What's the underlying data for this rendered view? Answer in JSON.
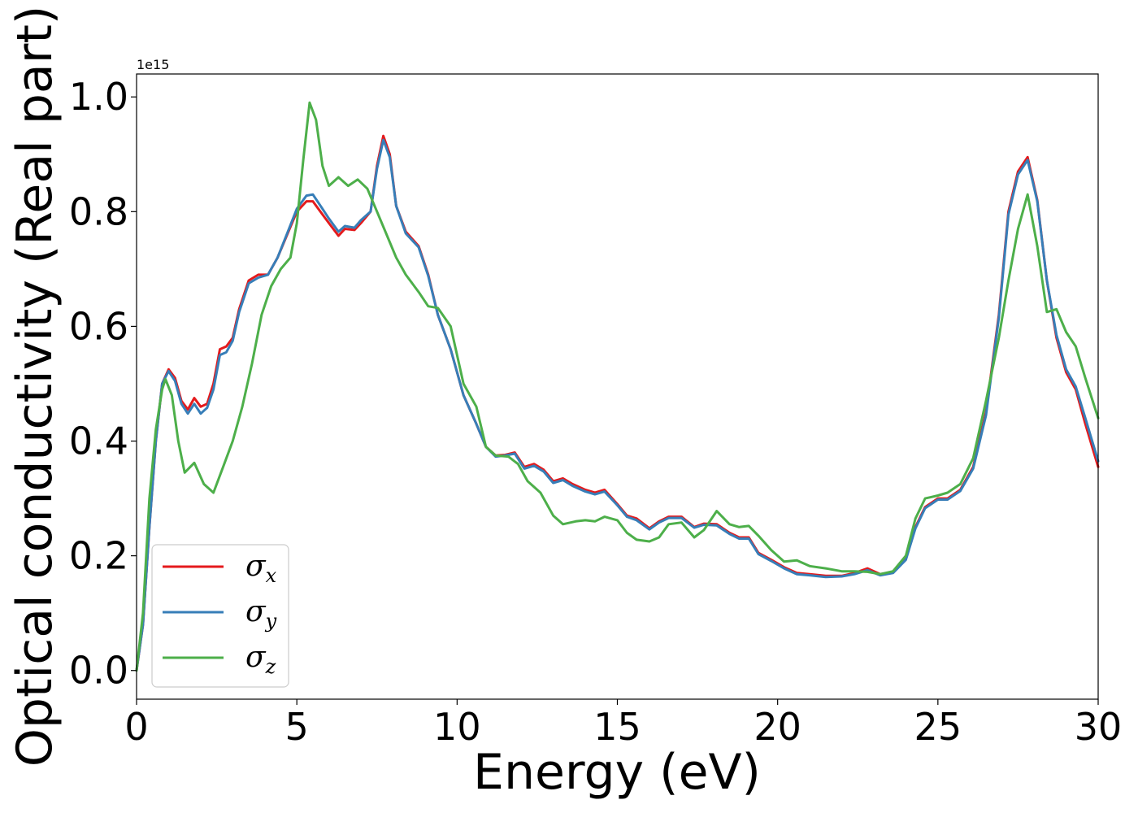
{
  "chart_data": {
    "type": "line",
    "xlabel": "Energy (eV)",
    "ylabel": "Optical conductivity (Real part)",
    "offset_text": "1e15",
    "xlim": [
      0,
      30
    ],
    "ylim": [
      -0.05,
      1.04
    ],
    "x_ticks": [
      0,
      5,
      10,
      15,
      20,
      25,
      30
    ],
    "x_tick_labels": [
      "0",
      "5",
      "10",
      "15",
      "20",
      "25",
      "30"
    ],
    "y_ticks": [
      0.0,
      0.2,
      0.4,
      0.6,
      0.8,
      1.0
    ],
    "y_tick_labels": [
      "0.0",
      "0.2",
      "0.4",
      "0.6",
      "0.8",
      "1.0"
    ],
    "grid": false,
    "legend_position": "lower-left",
    "series": [
      {
        "name": "σx",
        "symbol": "σ",
        "subscript": "x",
        "color": "#e41a1c",
        "points": [
          [
            0,
            0
          ],
          [
            0.2,
            0.08
          ],
          [
            0.4,
            0.25
          ],
          [
            0.6,
            0.4
          ],
          [
            0.8,
            0.5
          ],
          [
            1.0,
            0.525
          ],
          [
            1.2,
            0.51
          ],
          [
            1.4,
            0.47
          ],
          [
            1.6,
            0.455
          ],
          [
            1.8,
            0.475
          ],
          [
            2.0,
            0.46
          ],
          [
            2.2,
            0.465
          ],
          [
            2.4,
            0.5
          ],
          [
            2.6,
            0.56
          ],
          [
            2.8,
            0.565
          ],
          [
            3.0,
            0.58
          ],
          [
            3.2,
            0.63
          ],
          [
            3.5,
            0.68
          ],
          [
            3.8,
            0.69
          ],
          [
            4.1,
            0.69
          ],
          [
            4.4,
            0.72
          ],
          [
            4.7,
            0.76
          ],
          [
            5.0,
            0.8
          ],
          [
            5.3,
            0.818
          ],
          [
            5.5,
            0.818
          ],
          [
            5.8,
            0.795
          ],
          [
            6.0,
            0.78
          ],
          [
            6.3,
            0.758
          ],
          [
            6.5,
            0.77
          ],
          [
            6.8,
            0.768
          ],
          [
            7.0,
            0.78
          ],
          [
            7.3,
            0.8
          ],
          [
            7.5,
            0.88
          ],
          [
            7.7,
            0.932
          ],
          [
            7.9,
            0.9
          ],
          [
            8.1,
            0.81
          ],
          [
            8.4,
            0.765
          ],
          [
            8.8,
            0.74
          ],
          [
            9.1,
            0.69
          ],
          [
            9.4,
            0.62
          ],
          [
            9.8,
            0.56
          ],
          [
            10.2,
            0.48
          ],
          [
            10.6,
            0.43
          ],
          [
            10.9,
            0.39
          ],
          [
            11.2,
            0.375
          ],
          [
            11.5,
            0.376
          ],
          [
            11.8,
            0.38
          ],
          [
            12.1,
            0.355
          ],
          [
            12.4,
            0.36
          ],
          [
            12.7,
            0.35
          ],
          [
            13.0,
            0.33
          ],
          [
            13.3,
            0.335
          ],
          [
            13.6,
            0.325
          ],
          [
            14.0,
            0.315
          ],
          [
            14.3,
            0.31
          ],
          [
            14.6,
            0.315
          ],
          [
            15.0,
            0.29
          ],
          [
            15.3,
            0.27
          ],
          [
            15.6,
            0.265
          ],
          [
            16.0,
            0.248
          ],
          [
            16.3,
            0.26
          ],
          [
            16.6,
            0.268
          ],
          [
            17.0,
            0.268
          ],
          [
            17.4,
            0.25
          ],
          [
            17.7,
            0.256
          ],
          [
            18.1,
            0.255
          ],
          [
            18.5,
            0.24
          ],
          [
            18.8,
            0.232
          ],
          [
            19.1,
            0.232
          ],
          [
            19.4,
            0.205
          ],
          [
            19.8,
            0.193
          ],
          [
            20.2,
            0.18
          ],
          [
            20.6,
            0.17
          ],
          [
            21.0,
            0.168
          ],
          [
            21.5,
            0.165
          ],
          [
            22.0,
            0.165
          ],
          [
            22.4,
            0.17
          ],
          [
            22.8,
            0.178
          ],
          [
            23.2,
            0.168
          ],
          [
            23.6,
            0.172
          ],
          [
            24.0,
            0.195
          ],
          [
            24.3,
            0.25
          ],
          [
            24.6,
            0.285
          ],
          [
            25.0,
            0.3
          ],
          [
            25.3,
            0.3
          ],
          [
            25.7,
            0.315
          ],
          [
            26.1,
            0.355
          ],
          [
            26.5,
            0.45
          ],
          [
            26.9,
            0.62
          ],
          [
            27.2,
            0.8
          ],
          [
            27.5,
            0.87
          ],
          [
            27.8,
            0.895
          ],
          [
            28.1,
            0.82
          ],
          [
            28.4,
            0.68
          ],
          [
            28.7,
            0.58
          ],
          [
            29.0,
            0.52
          ],
          [
            29.3,
            0.49
          ],
          [
            29.6,
            0.43
          ],
          [
            30.0,
            0.355
          ]
        ]
      },
      {
        "name": "σy",
        "symbol": "σ",
        "subscript": "y",
        "color": "#377eb8",
        "points": [
          [
            0,
            0
          ],
          [
            0.2,
            0.08
          ],
          [
            0.4,
            0.25
          ],
          [
            0.6,
            0.4
          ],
          [
            0.8,
            0.5
          ],
          [
            1.0,
            0.522
          ],
          [
            1.2,
            0.505
          ],
          [
            1.4,
            0.465
          ],
          [
            1.6,
            0.448
          ],
          [
            1.8,
            0.465
          ],
          [
            2.0,
            0.448
          ],
          [
            2.2,
            0.458
          ],
          [
            2.4,
            0.49
          ],
          [
            2.6,
            0.55
          ],
          [
            2.8,
            0.555
          ],
          [
            3.0,
            0.575
          ],
          [
            3.2,
            0.625
          ],
          [
            3.5,
            0.675
          ],
          [
            3.8,
            0.685
          ],
          [
            4.1,
            0.69
          ],
          [
            4.4,
            0.72
          ],
          [
            4.7,
            0.762
          ],
          [
            5.0,
            0.805
          ],
          [
            5.3,
            0.828
          ],
          [
            5.5,
            0.83
          ],
          [
            5.8,
            0.805
          ],
          [
            6.0,
            0.788
          ],
          [
            6.3,
            0.765
          ],
          [
            6.5,
            0.775
          ],
          [
            6.8,
            0.772
          ],
          [
            7.0,
            0.785
          ],
          [
            7.3,
            0.8
          ],
          [
            7.5,
            0.875
          ],
          [
            7.7,
            0.925
          ],
          [
            7.9,
            0.895
          ],
          [
            8.1,
            0.81
          ],
          [
            8.4,
            0.762
          ],
          [
            8.8,
            0.738
          ],
          [
            9.1,
            0.688
          ],
          [
            9.4,
            0.62
          ],
          [
            9.8,
            0.56
          ],
          [
            10.2,
            0.48
          ],
          [
            10.6,
            0.43
          ],
          [
            10.9,
            0.39
          ],
          [
            11.2,
            0.373
          ],
          [
            11.5,
            0.375
          ],
          [
            11.8,
            0.378
          ],
          [
            12.1,
            0.352
          ],
          [
            12.4,
            0.357
          ],
          [
            12.7,
            0.347
          ],
          [
            13.0,
            0.327
          ],
          [
            13.3,
            0.332
          ],
          [
            13.6,
            0.322
          ],
          [
            14.0,
            0.312
          ],
          [
            14.3,
            0.307
          ],
          [
            14.6,
            0.312
          ],
          [
            15.0,
            0.288
          ],
          [
            15.3,
            0.268
          ],
          [
            15.6,
            0.262
          ],
          [
            16.0,
            0.246
          ],
          [
            16.3,
            0.258
          ],
          [
            16.6,
            0.266
          ],
          [
            17.0,
            0.266
          ],
          [
            17.4,
            0.249
          ],
          [
            17.7,
            0.254
          ],
          [
            18.1,
            0.253
          ],
          [
            18.5,
            0.238
          ],
          [
            18.8,
            0.23
          ],
          [
            19.1,
            0.23
          ],
          [
            19.4,
            0.203
          ],
          [
            19.8,
            0.191
          ],
          [
            20.2,
            0.178
          ],
          [
            20.6,
            0.168
          ],
          [
            21.0,
            0.166
          ],
          [
            21.5,
            0.163
          ],
          [
            22.0,
            0.164
          ],
          [
            22.4,
            0.168
          ],
          [
            22.8,
            0.175
          ],
          [
            23.2,
            0.166
          ],
          [
            23.6,
            0.17
          ],
          [
            24.0,
            0.193
          ],
          [
            24.3,
            0.248
          ],
          [
            24.6,
            0.283
          ],
          [
            25.0,
            0.298
          ],
          [
            25.3,
            0.298
          ],
          [
            25.7,
            0.313
          ],
          [
            26.1,
            0.352
          ],
          [
            26.5,
            0.445
          ],
          [
            26.9,
            0.615
          ],
          [
            27.2,
            0.795
          ],
          [
            27.5,
            0.865
          ],
          [
            27.8,
            0.89
          ],
          [
            28.1,
            0.818
          ],
          [
            28.4,
            0.68
          ],
          [
            28.7,
            0.585
          ],
          [
            29.0,
            0.525
          ],
          [
            29.3,
            0.495
          ],
          [
            29.6,
            0.44
          ],
          [
            30.0,
            0.365
          ]
        ]
      },
      {
        "name": "σz",
        "symbol": "σ",
        "subscript": "z",
        "color": "#4daf4a",
        "points": [
          [
            0,
            0
          ],
          [
            0.2,
            0.1
          ],
          [
            0.4,
            0.3
          ],
          [
            0.6,
            0.42
          ],
          [
            0.8,
            0.49
          ],
          [
            0.9,
            0.508
          ],
          [
            1.1,
            0.48
          ],
          [
            1.3,
            0.4
          ],
          [
            1.5,
            0.345
          ],
          [
            1.8,
            0.362
          ],
          [
            2.1,
            0.325
          ],
          [
            2.4,
            0.31
          ],
          [
            2.7,
            0.355
          ],
          [
            3.0,
            0.4
          ],
          [
            3.3,
            0.46
          ],
          [
            3.6,
            0.535
          ],
          [
            3.9,
            0.62
          ],
          [
            4.2,
            0.67
          ],
          [
            4.5,
            0.7
          ],
          [
            4.8,
            0.72
          ],
          [
            5.0,
            0.78
          ],
          [
            5.2,
            0.89
          ],
          [
            5.4,
            0.99
          ],
          [
            5.6,
            0.96
          ],
          [
            5.8,
            0.88
          ],
          [
            6.0,
            0.845
          ],
          [
            6.3,
            0.86
          ],
          [
            6.6,
            0.845
          ],
          [
            6.9,
            0.856
          ],
          [
            7.2,
            0.84
          ],
          [
            7.5,
            0.8
          ],
          [
            7.8,
            0.76
          ],
          [
            8.1,
            0.72
          ],
          [
            8.4,
            0.69
          ],
          [
            8.8,
            0.66
          ],
          [
            9.1,
            0.635
          ],
          [
            9.4,
            0.632
          ],
          [
            9.8,
            0.6
          ],
          [
            10.2,
            0.5
          ],
          [
            10.6,
            0.46
          ],
          [
            10.9,
            0.39
          ],
          [
            11.2,
            0.375
          ],
          [
            11.6,
            0.373
          ],
          [
            11.9,
            0.36
          ],
          [
            12.2,
            0.33
          ],
          [
            12.6,
            0.31
          ],
          [
            13.0,
            0.27
          ],
          [
            13.3,
            0.255
          ],
          [
            13.7,
            0.26
          ],
          [
            14.0,
            0.262
          ],
          [
            14.3,
            0.26
          ],
          [
            14.6,
            0.268
          ],
          [
            15.0,
            0.262
          ],
          [
            15.3,
            0.24
          ],
          [
            15.6,
            0.228
          ],
          [
            16.0,
            0.225
          ],
          [
            16.3,
            0.232
          ],
          [
            16.6,
            0.255
          ],
          [
            17.0,
            0.258
          ],
          [
            17.4,
            0.232
          ],
          [
            17.7,
            0.245
          ],
          [
            18.1,
            0.278
          ],
          [
            18.5,
            0.255
          ],
          [
            18.8,
            0.25
          ],
          [
            19.1,
            0.252
          ],
          [
            19.4,
            0.235
          ],
          [
            19.8,
            0.21
          ],
          [
            20.2,
            0.19
          ],
          [
            20.6,
            0.192
          ],
          [
            21.0,
            0.182
          ],
          [
            21.5,
            0.178
          ],
          [
            22.0,
            0.173
          ],
          [
            22.4,
            0.173
          ],
          [
            22.8,
            0.172
          ],
          [
            23.2,
            0.168
          ],
          [
            23.6,
            0.173
          ],
          [
            24.0,
            0.2
          ],
          [
            24.3,
            0.265
          ],
          [
            24.6,
            0.3
          ],
          [
            25.0,
            0.305
          ],
          [
            25.3,
            0.31
          ],
          [
            25.7,
            0.325
          ],
          [
            26.1,
            0.37
          ],
          [
            26.5,
            0.47
          ],
          [
            26.9,
            0.58
          ],
          [
            27.2,
            0.68
          ],
          [
            27.5,
            0.77
          ],
          [
            27.8,
            0.83
          ],
          [
            28.1,
            0.74
          ],
          [
            28.4,
            0.625
          ],
          [
            28.7,
            0.63
          ],
          [
            29.0,
            0.59
          ],
          [
            29.3,
            0.565
          ],
          [
            29.6,
            0.51
          ],
          [
            30.0,
            0.44
          ]
        ]
      }
    ]
  }
}
